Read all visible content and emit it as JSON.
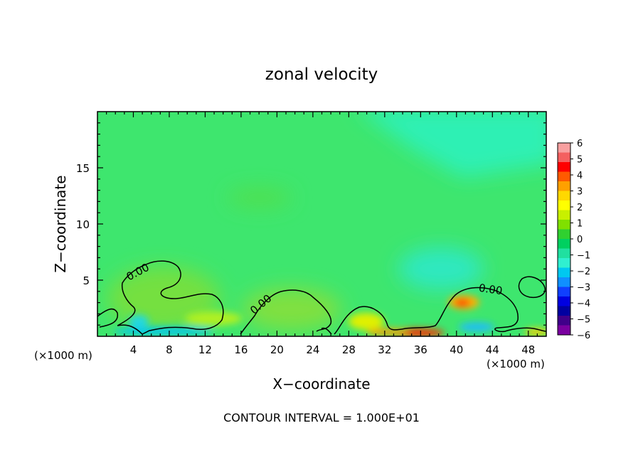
{
  "chart_data": {
    "type": "heatmap",
    "title": "zonal velocity",
    "xlabel": "X−coordinate",
    "ylabel": "Z−coordinate",
    "x_unit_left": "(×1000 m)",
    "x_unit_right": "(×1000 m)",
    "footer": "CONTOUR INTERVAL = 1.000E+01",
    "xlim": [
      0,
      50
    ],
    "ylim": [
      0,
      20
    ],
    "x_ticks": [
      4,
      8,
      12,
      16,
      20,
      24,
      28,
      32,
      36,
      40,
      44,
      48
    ],
    "y_ticks": [
      5,
      10,
      15
    ],
    "contour_labels": [
      "0.00",
      "0.00",
      "0.00"
    ],
    "colorbar": {
      "min": -6,
      "max": 6,
      "tick_labels": [
        "6",
        "5",
        "4",
        "3",
        "2",
        "1",
        "0",
        "−1",
        "−2",
        "−3",
        "−4",
        "−5",
        "−6"
      ],
      "colors": [
        "#f8a0a0",
        "#f46060",
        "#ff0000",
        "#ff5a00",
        "#ffa000",
        "#ffd800",
        "#ffff00",
        "#c8f000",
        "#80e000",
        "#30d030",
        "#00d060",
        "#20e0a0",
        "#30f0d0",
        "#00c8f0",
        "#1090ff",
        "#1040ff",
        "#0000e0",
        "#0000a0",
        "#40008a",
        "#7a00a0"
      ]
    },
    "regions": [
      {
        "x": 25,
        "z": 10,
        "u": 0.2
      },
      {
        "x": 38,
        "z": 17,
        "u": -1.0
      },
      {
        "x": 21,
        "z": 12.5,
        "u": 0.4
      },
      {
        "x": 38,
        "z": 6.5,
        "u": -1.6
      },
      {
        "x": 8,
        "z": 4,
        "u": 0.8
      },
      {
        "x": 22,
        "z": 2.5,
        "u": 0.9
      },
      {
        "x": 41,
        "z": 3,
        "u": 4.2
      },
      {
        "x": 35,
        "z": 0.4,
        "u": 4.5
      },
      {
        "x": 5,
        "z": 1,
        "u": -2.2
      },
      {
        "x": 42,
        "z": 1,
        "u": -2.8
      },
      {
        "x": 30,
        "z": 1.5,
        "u": 2.0
      }
    ]
  }
}
